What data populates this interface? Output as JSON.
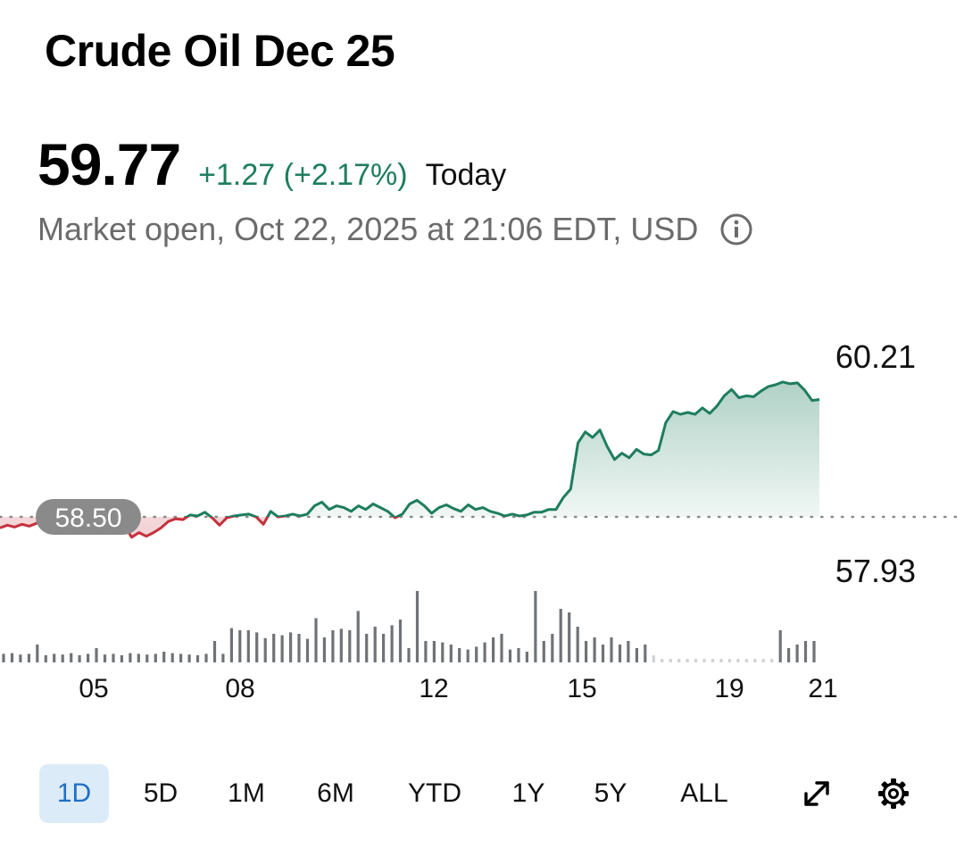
{
  "header": {
    "title": "Crude Oil Dec 25",
    "price": "59.77",
    "change": "+1.27 (+2.17%)",
    "period": "Today",
    "status": "Market open, Oct 22, 2025 at 21:06 EDT, USD"
  },
  "colors": {
    "up": "#1e7d5f",
    "down": "#c4313d",
    "volume": "#6f7378",
    "reference_badge": "#8a8a8a",
    "active_tab_bg": "#dcebf8",
    "active_tab_text": "#1f6fc5"
  },
  "icons": [
    "info-icon",
    "expand-icon",
    "gear-icon"
  ],
  "tabs": [
    {
      "label": "1D",
      "active": true
    },
    {
      "label": "5D",
      "active": false
    },
    {
      "label": "1M",
      "active": false
    },
    {
      "label": "6M",
      "active": false
    },
    {
      "label": "YTD",
      "active": false
    },
    {
      "label": "1Y",
      "active": false
    },
    {
      "label": "5Y",
      "active": false
    },
    {
      "label": "ALL",
      "active": false
    }
  ],
  "chart_data": {
    "type": "area",
    "title": "",
    "xlabel": "",
    "ylabel": "",
    "x_ticks": [
      "05",
      "08",
      "12",
      "15",
      "19",
      "21"
    ],
    "reference_label": "58.50",
    "reference_value": 58.5,
    "high_label": "60.21",
    "low_label": "57.93",
    "ylim": [
      57.93,
      60.21
    ],
    "grid": false,
    "legend": "none",
    "series": [
      {
        "x": [
          0,
          1,
          2,
          3,
          4,
          5,
          6,
          7,
          8,
          9,
          10,
          11,
          12,
          13,
          14,
          15,
          16,
          17,
          18,
          19,
          20,
          21,
          22,
          23,
          24,
          25,
          26,
          27,
          28,
          29,
          30,
          31,
          32,
          33,
          34,
          35,
          36,
          37,
          38,
          39,
          40,
          41,
          42,
          43,
          44,
          45,
          46,
          47,
          48,
          49,
          50,
          51,
          52,
          53,
          54,
          55,
          56,
          57,
          58,
          59,
          60,
          61,
          62,
          63,
          64,
          65,
          66,
          67,
          68,
          69,
          70,
          71,
          72,
          73,
          74,
          75,
          76,
          77,
          78,
          79,
          80,
          81,
          82,
          83,
          84,
          85,
          86,
          87,
          88,
          89,
          90,
          91,
          92,
          93,
          94,
          95,
          96,
          97,
          98,
          99,
          100,
          101,
          102,
          103,
          104,
          105,
          106,
          107,
          108,
          109,
          110,
          111,
          112
        ],
        "y": [
          58.38,
          58.41,
          58.39,
          58.42,
          58.4,
          58.43,
          58.47,
          58.44,
          58.47,
          58.52,
          58.48,
          58.45,
          58.42,
          58.4,
          58.42,
          58.4,
          58.37,
          58.41,
          58.28,
          58.33,
          58.29,
          58.33,
          58.38,
          58.45,
          58.48,
          58.47,
          58.52,
          58.51,
          58.55,
          58.49,
          58.41,
          58.49,
          58.51,
          58.52,
          58.53,
          58.5,
          58.42,
          58.56,
          58.5,
          58.51,
          58.53,
          58.51,
          58.53,
          58.62,
          58.66,
          58.58,
          58.62,
          58.6,
          58.56,
          58.62,
          58.58,
          58.64,
          58.6,
          58.56,
          58.49,
          58.53,
          58.64,
          58.68,
          58.62,
          58.54,
          58.6,
          58.63,
          58.59,
          58.56,
          58.63,
          58.58,
          58.6,
          58.56,
          58.54,
          58.51,
          58.53,
          58.51,
          58.52,
          58.55,
          58.55,
          58.58,
          58.58,
          58.71,
          58.8,
          59.3,
          59.42,
          59.36,
          59.44,
          59.26,
          59.12,
          59.19,
          59.14,
          59.23,
          59.18,
          59.17,
          59.22,
          59.52,
          59.64,
          59.61,
          59.63,
          59.61,
          59.68,
          59.62,
          59.7,
          59.81,
          59.88,
          59.79,
          59.81,
          59.8,
          59.86,
          59.91,
          59.93,
          59.96,
          59.94,
          59.95,
          59.87,
          59.76,
          59.77
        ]
      }
    ],
    "volume": [
      0.12,
      0.13,
      0.11,
      0.12,
      0.25,
      0.1,
      0.12,
      0.11,
      0.13,
      0.1,
      0.12,
      0.2,
      0.11,
      0.12,
      0.1,
      0.13,
      0.12,
      0.11,
      0.12,
      0.15,
      0.13,
      0.12,
      0.11,
      0.1,
      0.12,
      0.3,
      0.12,
      0.48,
      0.45,
      0.45,
      0.42,
      0.34,
      0.4,
      0.38,
      0.42,
      0.4,
      0.33,
      0.62,
      0.35,
      0.45,
      0.47,
      0.45,
      0.72,
      0.4,
      0.5,
      0.4,
      0.52,
      0.6,
      0.2,
      1.0,
      0.3,
      0.3,
      0.28,
      0.25,
      0.2,
      0.18,
      0.22,
      0.28,
      0.35,
      0.4,
      0.18,
      0.2,
      0.15,
      1.0,
      0.3,
      0.4,
      0.75,
      0.7,
      0.5,
      0.3,
      0.35,
      0.25,
      0.35,
      0.25,
      0.3,
      0.2,
      0.25,
      0.1,
      0.05,
      0.05,
      0.05,
      0.05,
      0.05,
      0.05,
      0.05,
      0.05,
      0.05,
      0.05,
      0.05,
      0.05,
      0.05,
      0.05,
      0.45,
      0.2,
      0.25,
      0.3,
      0.3
    ]
  }
}
